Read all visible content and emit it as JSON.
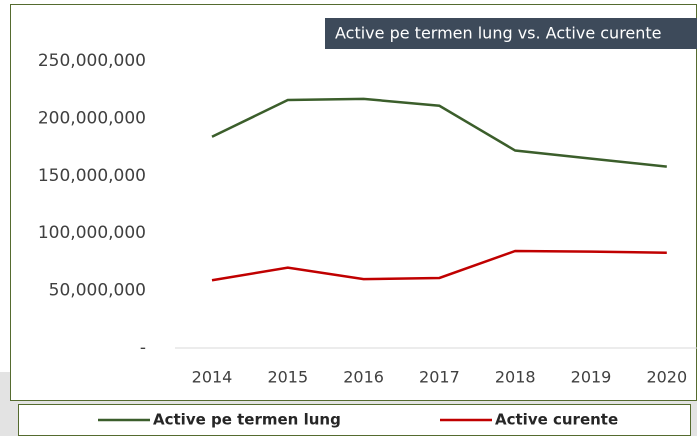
{
  "chart_data": {
    "type": "line",
    "title": "Active pe termen lung vs. Active curente",
    "categories": [
      "2014",
      "2015",
      "2016",
      "2017",
      "2018",
      "2019",
      "2020"
    ],
    "series": [
      {
        "name": "Active pe termen lung",
        "color": "#3b5e2b",
        "values": [
          184000000,
          216000000,
          217000000,
          211000000,
          172000000,
          165000000,
          158000000
        ]
      },
      {
        "name": "Active curente",
        "color": "#c00000",
        "values": [
          59000000,
          70000000,
          60000000,
          61000000,
          84500000,
          84000000,
          83000000
        ]
      }
    ],
    "ylim": [
      0,
      250000000
    ],
    "yticks": [
      {
        "value": 0,
        "label": "-"
      },
      {
        "value": 50000000,
        "label": "50,000,000"
      },
      {
        "value": 100000000,
        "label": "100,000,000"
      },
      {
        "value": 150000000,
        "label": "150,000,000"
      },
      {
        "value": 200000000,
        "label": "200,000,000"
      },
      {
        "value": 250000000,
        "label": "250,000,000"
      }
    ],
    "legend": "bottom"
  }
}
